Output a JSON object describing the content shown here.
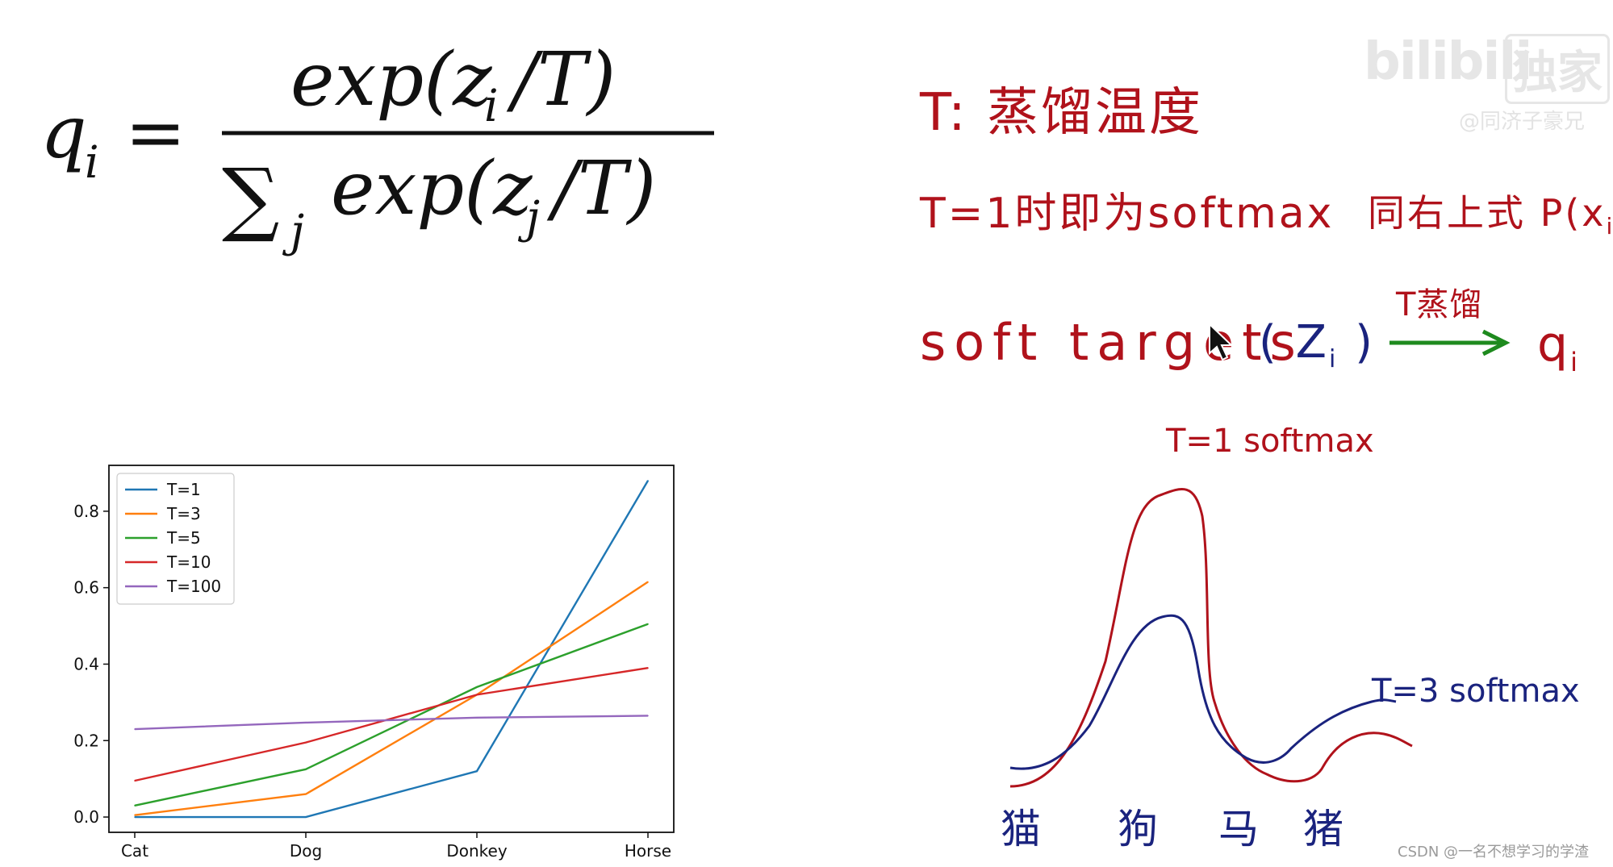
{
  "formula": {
    "lhs": "q",
    "lhs_sub": "i",
    "equals": "=",
    "numerator": "exp(z",
    "numerator_sub": "i",
    "numerator_end": "/T)",
    "sum": "∑",
    "sum_sub": "j",
    "denominator": "exp(z",
    "denominator_sub": "j",
    "denominator_end": "/T)"
  },
  "notes": {
    "line1": "T: 蒸馏温度",
    "line2a": "T=1时即为softmax",
    "line2b": "同右上式 P(x",
    "line2b_sub": "ij",
    "line2b_end": ")",
    "line3_soft": "soft targets",
    "line3_z": "( Z",
    "line3_z_sub": "i",
    "line3_z_end": " )",
    "arrow_label": "T蒸馏",
    "line3_q": "q",
    "line3_q_sub": "i",
    "arrow_color": "#1e8a1e"
  },
  "sketch": {
    "label_t1": "T=1 softmax",
    "label_t3": "T=3 softmax",
    "categories": [
      "猫",
      "狗",
      "马",
      "猪"
    ],
    "curve_t1_color": "#b0121b",
    "curve_t3_color": "#1a237e"
  },
  "watermark": {
    "logo": "bilibili",
    "logo_tag": "独家",
    "subtitle": "@同济子豪兄",
    "csdn": "CSDN @一名不想学习的学渣"
  },
  "chart_data": {
    "type": "line",
    "categories": [
      "Cat",
      "Dog",
      "Donkey",
      "Horse"
    ],
    "yticks": [
      "0.0",
      "0.2",
      "0.4",
      "0.6",
      "0.8"
    ],
    "ylim": [
      -0.04,
      0.92
    ],
    "grid": false,
    "legend_position": "top-left",
    "series": [
      {
        "name": "T=1",
        "values": [
          0.0,
          0.0,
          0.12,
          0.88
        ],
        "color": "#1f77b4"
      },
      {
        "name": "T=3",
        "values": [
          0.005,
          0.06,
          0.32,
          0.615
        ],
        "color": "#ff7f0e"
      },
      {
        "name": "T=5",
        "values": [
          0.03,
          0.125,
          0.34,
          0.505
        ],
        "color": "#2ca02c"
      },
      {
        "name": "T=10",
        "values": [
          0.095,
          0.195,
          0.32,
          0.39
        ],
        "color": "#d62728"
      },
      {
        "name": "T=100",
        "values": [
          0.23,
          0.247,
          0.26,
          0.265
        ],
        "color": "#9467bd"
      }
    ]
  }
}
